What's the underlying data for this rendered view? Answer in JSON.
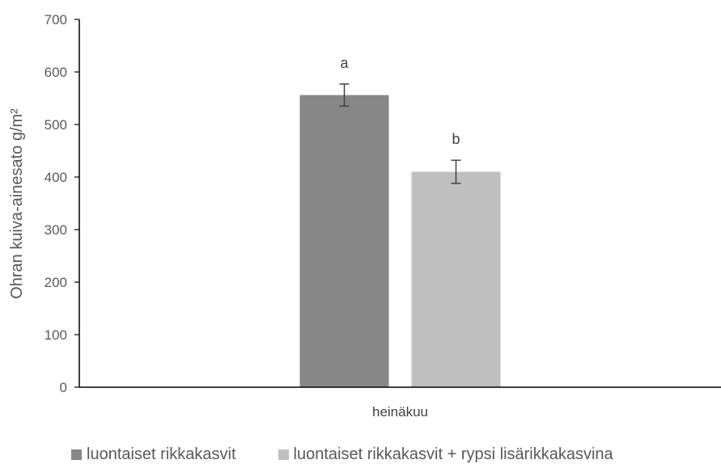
{
  "chart_data": {
    "type": "bar",
    "categories": [
      "heinäkuu"
    ],
    "series": [
      {
        "name": "luontaiset rikkakasvit",
        "values": [
          556
        ],
        "error": [
          21
        ],
        "color": "#878787",
        "significance": "a"
      },
      {
        "name": "luontaiset rikkakasvit + rypsi lisärikkakasvina",
        "values": [
          410
        ],
        "error": [
          22
        ],
        "color": "#bfbfbf",
        "significance": "b"
      }
    ],
    "title": "",
    "xlabel": "",
    "ylabel": "Ohran kuiva-ainesato g/m²",
    "ylim": [
      0,
      700
    ],
    "yticks": [
      0,
      100,
      200,
      300,
      400,
      500,
      600,
      700
    ],
    "yticklabels": [
      "0",
      "100",
      "200",
      "300",
      "400",
      "500",
      "600",
      "700"
    ],
    "grid": false,
    "legend_position": "bottom"
  }
}
